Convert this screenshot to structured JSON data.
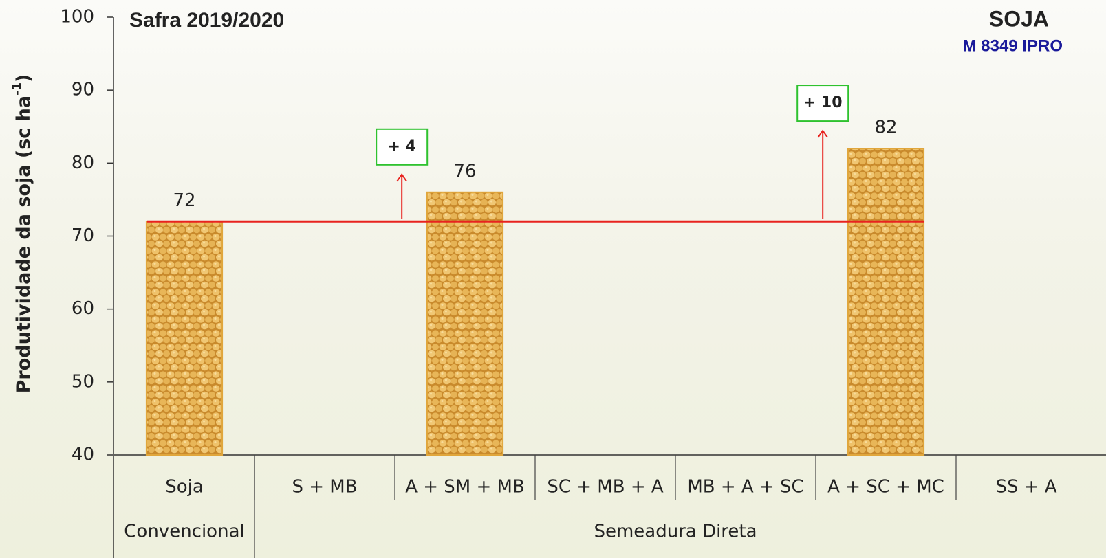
{
  "chart_data": {
    "type": "bar",
    "title": "Safra 2019/2020",
    "corner_title": "SOJA",
    "corner_subtitle": "M 8349 IPRO",
    "y_label": {
      "text": "Produtividade da soja (sc ha",
      "superscript": "-1",
      "close": ")"
    },
    "categories": [
      "Soja",
      "S + MB",
      "A + SM + MB",
      "SC + MB + A",
      "MB + A + SC",
      "A + SC + MC",
      "SS + A"
    ],
    "groups": [
      {
        "label": "Convencional",
        "span": 1
      },
      {
        "label": "Semeadura Direta",
        "span": 6
      }
    ],
    "values": [
      72,
      null,
      76,
      null,
      null,
      82,
      null
    ],
    "color": "#e0a63c",
    "reference_line": 72,
    "reference_color": "#e8231f",
    "annotations": [
      "+ 4",
      "+ 10"
    ],
    "ylim": [
      40,
      100
    ],
    "yticks": [
      40,
      50,
      60,
      70,
      80,
      90,
      100
    ]
  }
}
